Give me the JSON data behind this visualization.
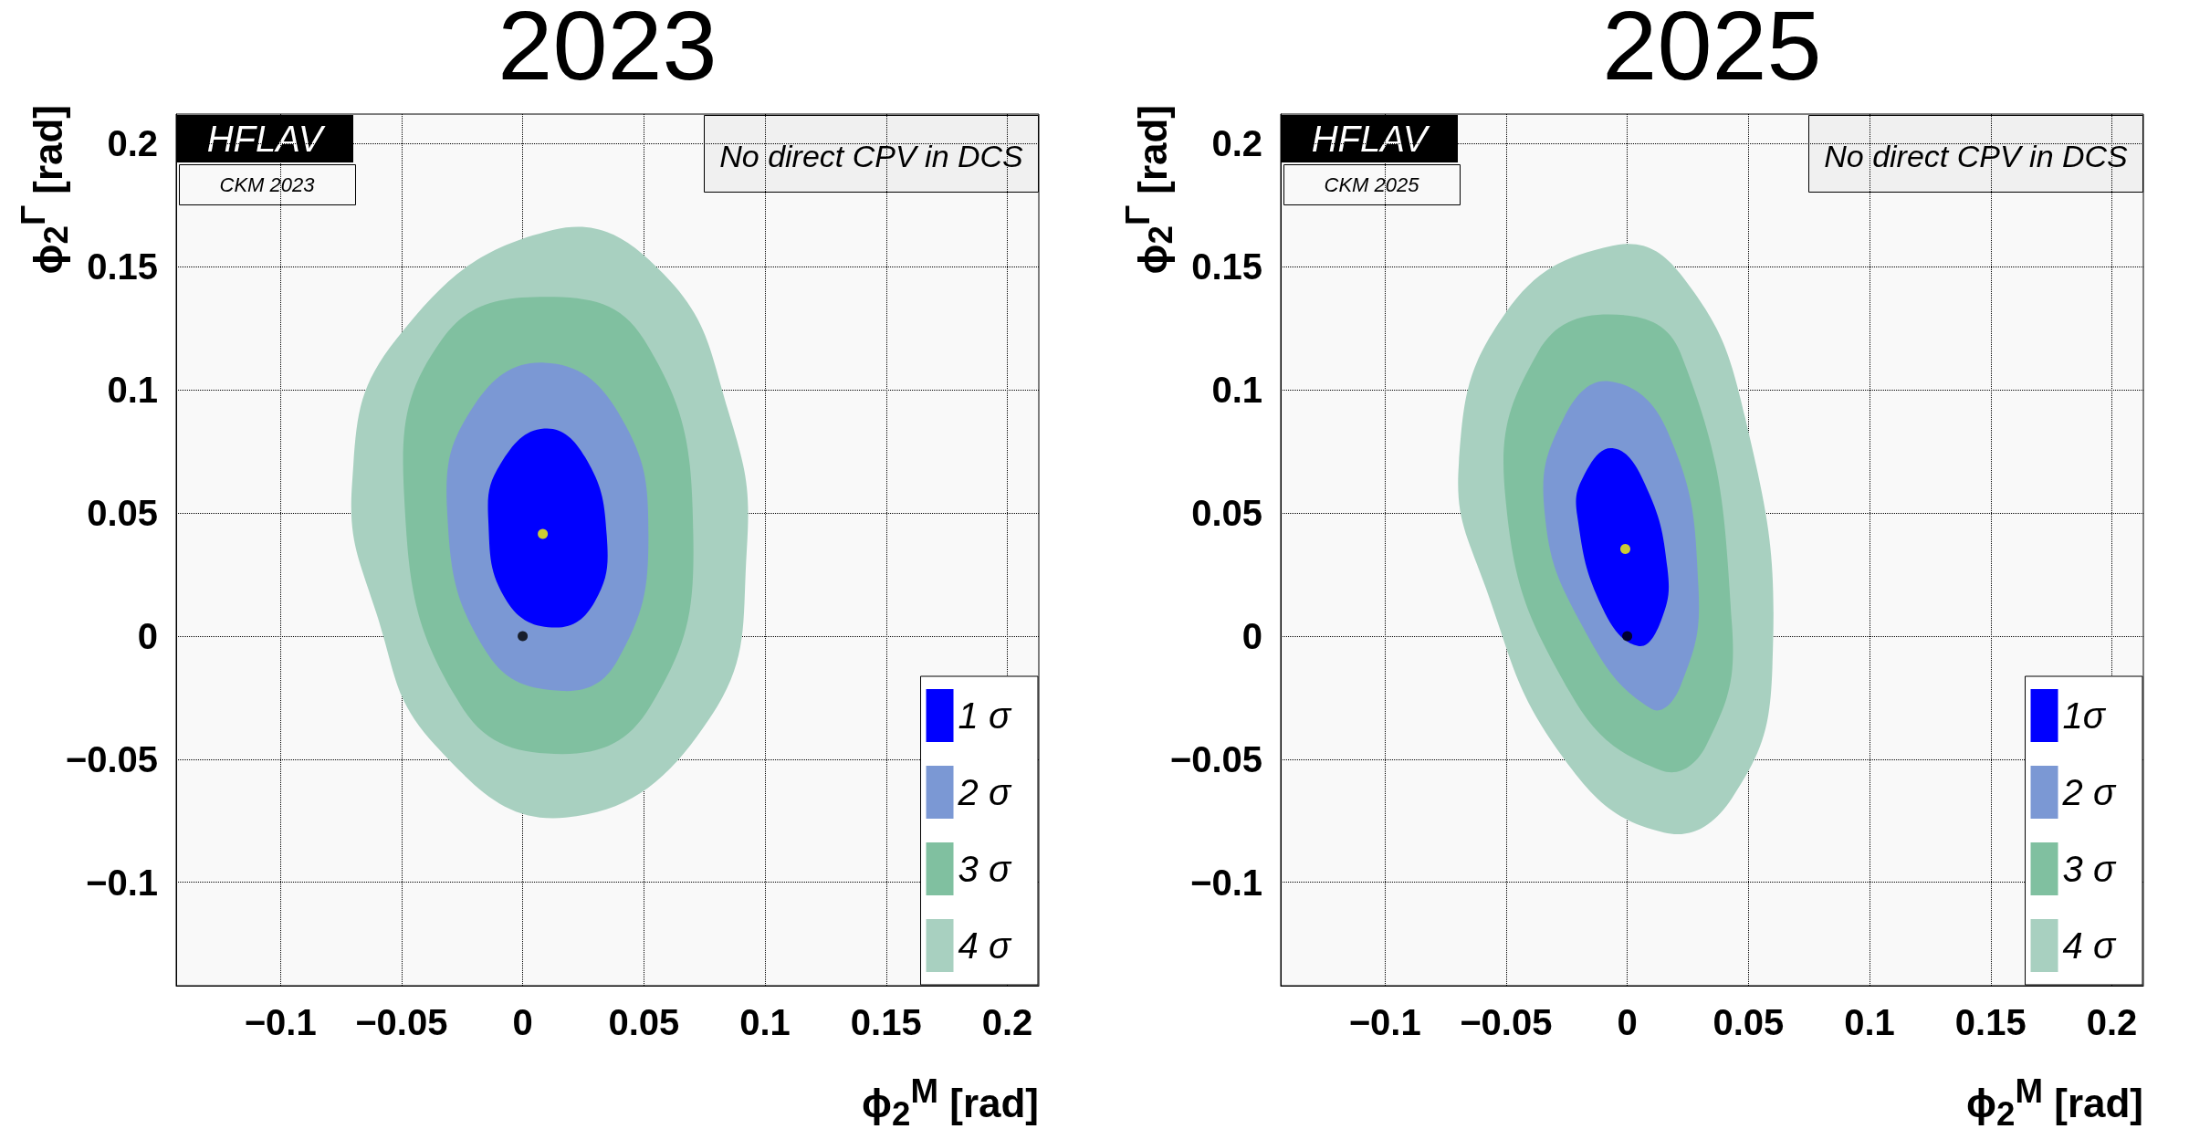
{
  "chart_data": [
    {
      "type": "area",
      "title": "2023",
      "xlabel": "ϕ$_{2}$$^{M}$ [rad]",
      "ylabel": "ϕ$_{2}$$^{Γ}$ [rad]",
      "annotations": [
        "HFLAV",
        "CKM 2023",
        "No direct CPV in DCS"
      ],
      "xlim": [
        -0.143,
        0.213
      ],
      "ylim": [
        -0.142,
        0.212
      ],
      "xticks": [
        -0.1,
        -0.05,
        0,
        0.05,
        0.1,
        0.15,
        0.2
      ],
      "yticks": [
        -0.1,
        -0.05,
        0,
        0.05,
        0.1,
        0.15,
        0.2
      ],
      "grid": true,
      "legend": "bottom right",
      "series": [
        {
          "name": "1 σ",
          "color": "#0000ff",
          "x": [
            0.0089,
            0.0258,
            0.0347,
            0.0298,
            0.0137,
            -0.0065,
            -0.0142,
            -0.0091
          ],
          "values": [
            0.0843,
            0.0726,
            0.0407,
            0.0141,
            0.0035,
            0.0141,
            0.0473,
            0.07
          ]
        },
        {
          "name": "2 σ",
          "color": "#7b98d4",
          "x": [
            0.0091,
            0.0392,
            0.0519,
            0.0392,
            0.0164,
            -0.0145,
            -0.0312,
            -0.0199
          ],
          "values": [
            0.111,
            0.0912,
            0.0407,
            -0.0098,
            -0.0223,
            -0.0072,
            0.0513,
            0.0939
          ]
        },
        {
          "name": "3 σ",
          "color": "#80c0a0",
          "x": [
            0.0097,
            0.05,
            0.0704,
            0.0527,
            0.0164,
            -0.0253,
            -0.0489,
            -0.0333
          ],
          "values": [
            0.1378,
            0.1205,
            0.0407,
            -0.0285,
            -0.0479,
            -0.0285,
            0.0566,
            0.1205
          ]
        },
        {
          "name": "4 σ",
          "color": "#a8d0c0",
          "x": [
            0.0124,
            0.0581,
            0.0849,
            0.0925,
            0.0769,
            0.0177,
            -0.036,
            -0.0602,
            -0.0704,
            -0.0522
          ],
          "values": [
            0.1649,
            0.1471,
            0.0912,
            0.0354,
            -0.0338,
            -0.0737,
            -0.0444,
            0.0088,
            0.062,
            0.1205
          ]
        },
        {
          "type": "scatter",
          "marker": "circle",
          "color": "#ffff00",
          "x": [
            0.0083
          ],
          "values": [
            0.0415
          ]
        },
        {
          "type": "scatter",
          "marker": "circle",
          "color": "#000000",
          "x": [
            0
          ],
          "values": [
            0
          ]
        }
      ]
    },
    {
      "type": "area",
      "title": "2025",
      "xlabel": "ϕ$_{2}$$^{M}$ [rad]",
      "ylabel": "ϕ$_{2}$$^{Γ}$ [rad]",
      "annotations": [
        "HFLAV",
        "CKM 2025",
        "No direct CPV in DCS"
      ],
      "xlim": [
        -0.143,
        0.213
      ],
      "ylim": [
        -0.142,
        0.212
      ],
      "xticks": [
        -0.1,
        -0.05,
        0,
        0.05,
        0.1,
        0.15,
        0.2
      ],
      "yticks": [
        -0.1,
        -0.05,
        0,
        0.05,
        0.1,
        0.15,
        0.2
      ],
      "grid": true,
      "legend": "bottom right",
      "series": [
        {
          "name": "1σ",
          "color": "#0000ff",
          "x": [
            -0.0061,
            0.0072,
            0.0166,
            0.0139,
            0.0045,
            -0.0102,
            -0.0206,
            -0.0182
          ],
          "values": [
            0.0763,
            0.062,
            0.0274,
            0.0061,
            -0.004,
            0.0114,
            0.0487,
            0.0646
          ]
        },
        {
          "name": "2 σ",
          "color": "#7b98d4",
          "x": [
            -0.0075,
            0.0166,
            0.0294,
            0.0219,
            0.0099,
            -0.0182,
            -0.0342,
            -0.0262
          ],
          "values": [
            0.1035,
            0.0832,
            0.0194,
            -0.0205,
            -0.0295,
            0.0035,
            0.0513,
            0.0886
          ]
        },
        {
          "name": "3 σ",
          "color": "#80c0a0",
          "x": [
            -0.0075,
            0.0219,
            0.0433,
            0.0326,
            0.0139,
            -0.0235,
            -0.0503,
            -0.0369
          ],
          "values": [
            0.1306,
            0.1152,
            0.0035,
            -0.0444,
            -0.0545,
            -0.0231,
            0.0566,
            0.1152
          ]
        },
        {
          "name": "4 σ",
          "color": "#a8d0c0",
          "x": [
            -0.0061,
            0.0219,
            0.0487,
            0.0599,
            0.0433,
            0.0152,
            -0.0262,
            -0.0583,
            -0.0695,
            -0.0503
          ],
          "values": [
            0.1585,
            0.1471,
            0.0886,
            -0.0125,
            -0.0657,
            -0.0798,
            -0.0497,
            0.0194,
            0.0699,
            0.1311
          ]
        },
        {
          "type": "scatter",
          "marker": "circle",
          "color": "#ffff00",
          "x": [
            -0.0008
          ],
          "values": [
            0.0354
          ]
        },
        {
          "type": "scatter",
          "marker": "circle",
          "color": "#000000",
          "x": [
            0
          ],
          "values": [
            0
          ]
        }
      ]
    }
  ]
}
